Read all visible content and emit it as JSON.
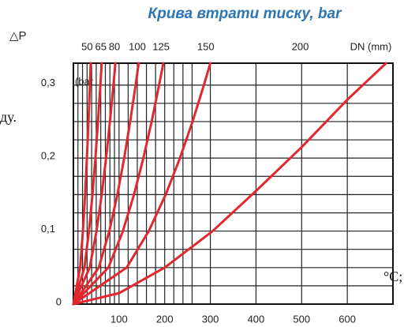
{
  "chart_data": {
    "type": "line",
    "title": "Крива втрати тиску, bar",
    "y_label": "△P",
    "y_unit": "(bar",
    "top_axis_label": "DN (mm)",
    "side_texts": [
      "ду.",
      "°C;"
    ],
    "xlim": [
      0,
      700
    ],
    "ylim": [
      0,
      0.33
    ],
    "xticks": [
      100,
      200,
      300,
      400,
      500,
      600
    ],
    "yticks": [
      0,
      {
        "value": 0.1,
        "label": "0,1"
      },
      {
        "value": 0.2,
        "label": "0,2"
      },
      {
        "value": 0.3,
        "label": "0,3"
      }
    ],
    "xgrid": [
      10,
      20,
      30,
      40,
      50,
      60,
      70,
      80,
      90,
      100,
      120,
      140,
      160,
      180,
      200,
      220,
      240,
      260,
      300,
      400,
      500,
      600
    ],
    "ygrid": [
      0.025,
      0.05,
      0.075,
      0.1,
      0.125,
      0.15,
      0.175,
      0.2,
      0.225,
      0.25,
      0.275,
      0.3
    ],
    "top_ticks": [
      {
        "value": 30,
        "label": "50"
      },
      {
        "value": 60,
        "label": "65"
      },
      {
        "value": 90,
        "label": "80"
      },
      {
        "value": 140,
        "label": "100"
      },
      {
        "value": 192,
        "label": "125"
      },
      {
        "value": 290,
        "label": "150"
      },
      {
        "value": 497,
        "label": "200"
      }
    ],
    "color": "#e0282e",
    "series": [
      {
        "name": "50",
        "x": [
          0,
          14.8,
          20.9,
          25.6,
          29.6,
          33.1,
          36.2,
          38
        ],
        "values": [
          0,
          0.05,
          0.1,
          0.15,
          0.2,
          0.25,
          0.3,
          0.33
        ]
      },
      {
        "name": "65",
        "x": [
          0,
          24.1,
          34.1,
          41.8,
          48.2,
          53.9,
          59.1,
          62
        ],
        "values": [
          0,
          0.05,
          0.1,
          0.15,
          0.2,
          0.25,
          0.3,
          0.33
        ]
      },
      {
        "name": "80",
        "x": [
          0,
          35.8,
          50.6,
          62,
          71.6,
          80,
          87.7,
          92
        ],
        "values": [
          0,
          0.05,
          0.1,
          0.15,
          0.2,
          0.25,
          0.3,
          0.33
        ]
      },
      {
        "name": "100",
        "x": [
          0,
          55.6,
          78.7,
          96.4,
          111.3,
          124.4,
          136.3,
          143
        ],
        "values": [
          0,
          0.05,
          0.1,
          0.15,
          0.2,
          0.25,
          0.3,
          0.33
        ]
      },
      {
        "name": "125",
        "x": [
          0,
          76.6,
          108.4,
          132.8,
          153.3,
          171.4,
          187.7,
          197
        ],
        "values": [
          0,
          0.05,
          0.1,
          0.15,
          0.2,
          0.25,
          0.3,
          0.33
        ]
      },
      {
        "name": "150",
        "x": [
          0,
          116.7,
          165,
          202.2,
          233.4,
          261,
          285.9,
          300
        ],
        "values": [
          0,
          0.05,
          0.1,
          0.15,
          0.2,
          0.25,
          0.3,
          0.33
        ]
      },
      {
        "name": "200",
        "x": [
          0,
          100,
          200,
          305,
          400,
          500,
          600,
          685
        ],
        "values": [
          0,
          0.015,
          0.05,
          0.1,
          0.155,
          0.215,
          0.28,
          0.33
        ]
      }
    ]
  }
}
